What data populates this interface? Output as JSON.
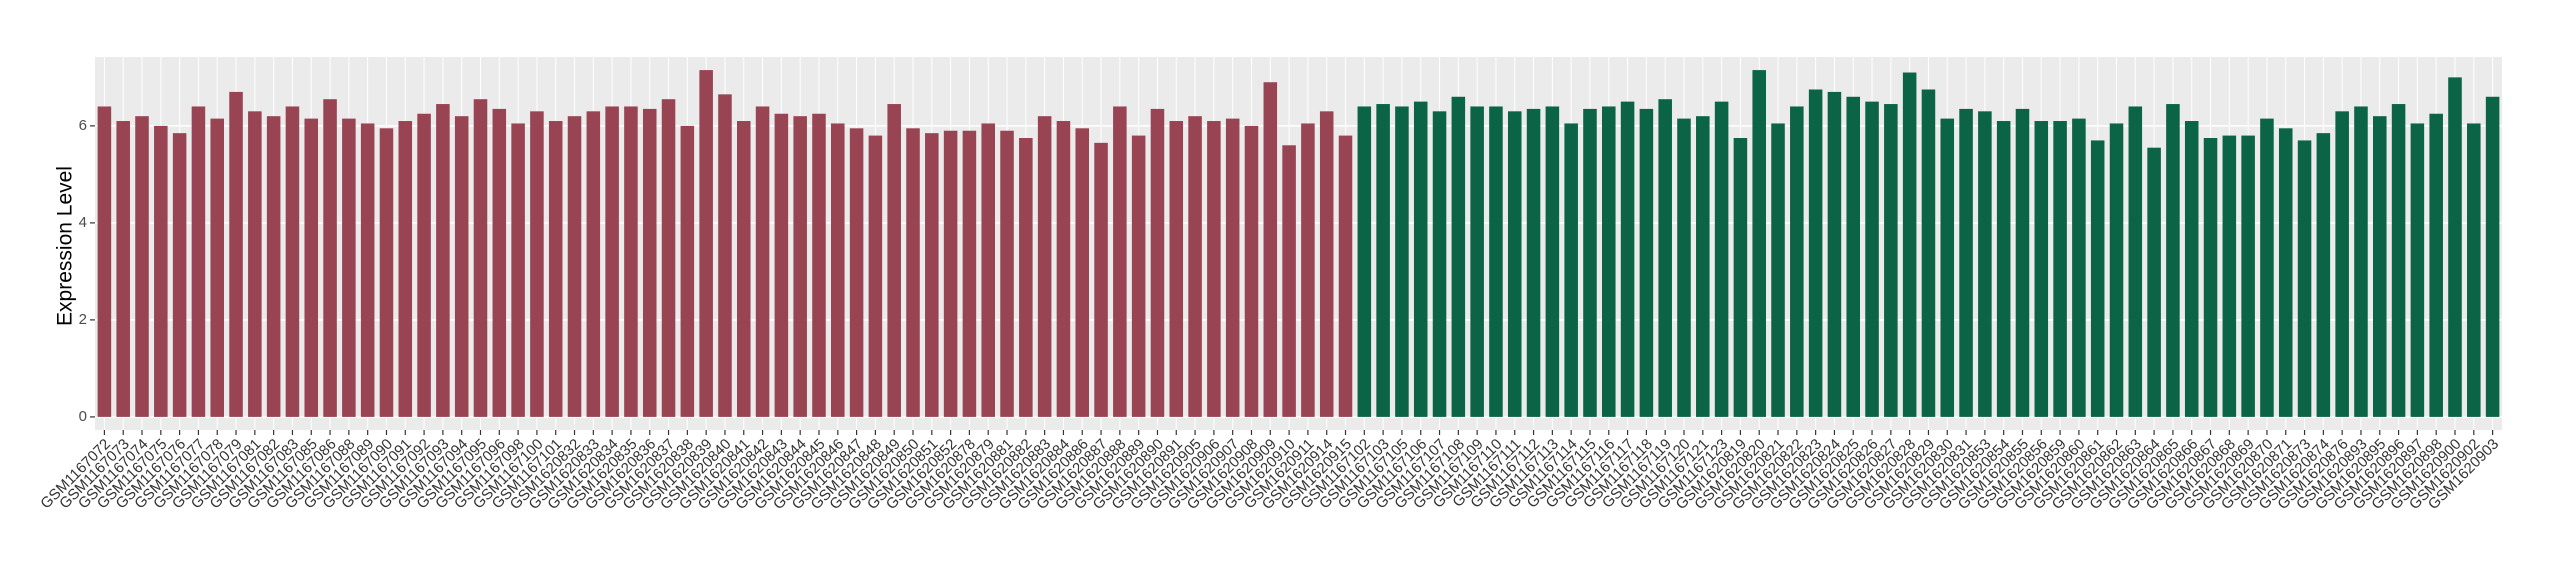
{
  "chart_data": {
    "type": "bar",
    "y_label": "Expression Level",
    "categories": [
      "GSM1167072",
      "GSM1167073",
      "GSM1167074",
      "GSM1167075",
      "GSM1167076",
      "GSM1167077",
      "GSM1167078",
      "GSM1167079",
      "GSM1167081",
      "GSM1167082",
      "GSM1167083",
      "GSM1167085",
      "GSM1167086",
      "GSM1167088",
      "GSM1167089",
      "GSM1167090",
      "GSM1167091",
      "GSM1167092",
      "GSM1167093",
      "GSM1167094",
      "GSM1167095",
      "GSM1167096",
      "GSM1167098",
      "GSM1167100",
      "GSM1167101",
      "GSM1620832",
      "GSM1620833",
      "GSM1620834",
      "GSM1620835",
      "GSM1620836",
      "GSM1620837",
      "GSM1620838",
      "GSM1620839",
      "GSM1620840",
      "GSM1620841",
      "GSM1620842",
      "GSM1620843",
      "GSM1620844",
      "GSM1620845",
      "GSM1620846",
      "GSM1620847",
      "GSM1620848",
      "GSM1620849",
      "GSM1620850",
      "GSM1620851",
      "GSM1620852",
      "GSM1620878",
      "GSM1620879",
      "GSM1620881",
      "GSM1620882",
      "GSM1620883",
      "GSM1620884",
      "GSM1620886",
      "GSM1620887",
      "GSM1620888",
      "GSM1620889",
      "GSM1620890",
      "GSM1620891",
      "GSM1620905",
      "GSM1620906",
      "GSM1620907",
      "GSM1620908",
      "GSM1620909",
      "GSM1620910",
      "GSM1620911",
      "GSM1620914",
      "GSM1620915",
      "GSM1167102",
      "GSM1167103",
      "GSM1167105",
      "GSM1167106",
      "GSM1167107",
      "GSM1167108",
      "GSM1167109",
      "GSM1167110",
      "GSM1167111",
      "GSM1167112",
      "GSM1167113",
      "GSM1167114",
      "GSM1167115",
      "GSM1167116",
      "GSM1167117",
      "GSM1167118",
      "GSM1167119",
      "GSM1167120",
      "GSM1167121",
      "GSM1167123",
      "GSM1620819",
      "GSM1620820",
      "GSM1620821",
      "GSM1620822",
      "GSM1620823",
      "GSM1620824",
      "GSM1620825",
      "GSM1620826",
      "GSM1620827",
      "GSM1620828",
      "GSM1620829",
      "GSM1620830",
      "GSM1620831",
      "GSM1620853",
      "GSM1620854",
      "GSM1620855",
      "GSM1620856",
      "GSM1620859",
      "GSM1620860",
      "GSM1620861",
      "GSM1620862",
      "GSM1620863",
      "GSM1620864",
      "GSM1620865",
      "GSM1620866",
      "GSM1620867",
      "GSM1620868",
      "GSM1620869",
      "GSM1620870",
      "GSM1620871",
      "GSM1620873",
      "GSM1620874",
      "GSM1620876",
      "GSM1620893",
      "GSM1620895",
      "GSM1620896",
      "GSM1620897",
      "GSM1620898",
      "GSM1620900",
      "GSM1620902",
      "GSM1620903"
    ],
    "series": [
      {
        "color": "#984452",
        "values": [
          6.4,
          6.1,
          6.2,
          6.0,
          5.85,
          6.4,
          6.15,
          6.7,
          6.3,
          6.2,
          6.4,
          6.15,
          6.55,
          6.15,
          6.05,
          5.95,
          6.1,
          6.25,
          6.45,
          6.2,
          6.55,
          6.35,
          6.05,
          6.3,
          6.1,
          6.2,
          6.3,
          6.4,
          6.4,
          6.35,
          6.55,
          6.0,
          7.15,
          6.65,
          6.1,
          6.4,
          6.25,
          6.2,
          6.25,
          6.05,
          5.95,
          5.8,
          6.45,
          5.95,
          5.85,
          5.9,
          5.9,
          6.05,
          5.9,
          5.75,
          6.2,
          6.1,
          5.95,
          5.65,
          6.4,
          5.8,
          6.35,
          6.1,
          6.2,
          6.1,
          6.15,
          6.0,
          6.9,
          5.6,
          6.05,
          6.3,
          5.8,
          null,
          null,
          null,
          null,
          null,
          null,
          null,
          null,
          null,
          null,
          null,
          null,
          null,
          null,
          null,
          null,
          null,
          null,
          null,
          null,
          null,
          null,
          null,
          null,
          null,
          null,
          null,
          null,
          null,
          null,
          null,
          null,
          null,
          null,
          null,
          null,
          null,
          null,
          null,
          null,
          null,
          null,
          null,
          null,
          null,
          null,
          null,
          null,
          null,
          null,
          null,
          null,
          null,
          null,
          null,
          null,
          null,
          null,
          null,
          null,
          null
        ]
      },
      {
        "color": "#0a6445",
        "values": [
          null,
          null,
          null,
          null,
          null,
          null,
          null,
          null,
          null,
          null,
          null,
          null,
          null,
          null,
          null,
          null,
          null,
          null,
          null,
          null,
          null,
          null,
          null,
          null,
          null,
          null,
          null,
          null,
          null,
          null,
          null,
          null,
          null,
          null,
          null,
          null,
          null,
          null,
          null,
          null,
          null,
          null,
          null,
          null,
          null,
          null,
          null,
          null,
          null,
          null,
          null,
          null,
          null,
          null,
          null,
          null,
          null,
          null,
          null,
          null,
          null,
          null,
          null,
          null,
          null,
          null,
          null,
          6.4,
          6.45,
          6.4,
          6.5,
          6.3,
          6.6,
          6.4,
          6.4,
          6.3,
          6.35,
          6.4,
          6.05,
          6.35,
          6.4,
          6.5,
          6.35,
          6.55,
          6.15,
          6.2,
          6.5,
          5.75,
          7.15,
          6.05,
          6.4,
          6.75,
          6.7,
          6.6,
          6.5,
          6.45,
          7.1,
          6.75,
          6.15,
          6.35,
          6.3,
          6.1,
          6.35,
          6.1,
          6.1,
          6.15,
          5.7,
          6.05,
          6.4,
          5.55,
          6.45,
          6.1,
          5.75,
          5.8,
          5.8,
          6.15,
          5.95,
          5.7,
          5.85,
          6.3,
          6.4,
          6.2,
          6.45,
          6.05,
          6.25,
          7.0,
          6.05,
          6.6
        ]
      }
    ],
    "ylim": [
      -0.27,
      7.42
    ],
    "yticks": [
      0,
      2,
      4,
      6
    ],
    "grid": true
  }
}
